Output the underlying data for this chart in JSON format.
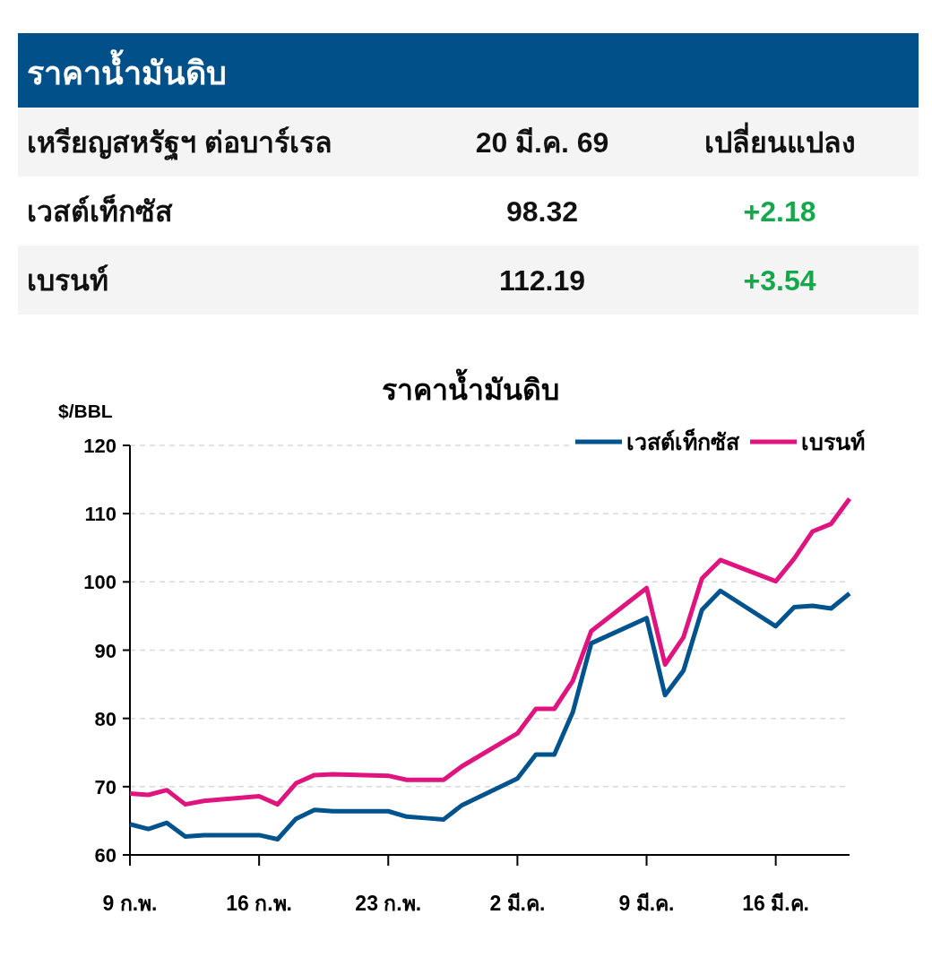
{
  "chart_data": [
    {
      "type": "other",
      "title": "ราคาน้ำมันดิบ",
      "annotations": [
        "เหรียญสหรัฐฯ ต่อบาร์เรล",
        "20 มี.ค. 69",
        "เปลี่ยนแปลง",
        "เวสต์เท็กซัส",
        "98.32",
        "+2.18",
        "เบรนท์",
        "112.19",
        "+3.54"
      ]
    },
    {
      "type": "line",
      "title": "ราคาน้ำมันดิบ",
      "ylabel": "$/BBL",
      "x": [
        "--02-09",
        "--02-10",
        "--02-11",
        "--02-12",
        "--02-13",
        "--02-16",
        "--02-17",
        "--02-18",
        "--02-19",
        "--02-20",
        "--02-23",
        "--02-24",
        "--02-25",
        "--02-26",
        "--02-27",
        "--03-02",
        "--03-03",
        "--03-04",
        "--03-05",
        "--03-06",
        "--03-09",
        "--03-10",
        "--03-11",
        "--03-12",
        "--03-13",
        "--03-16",
        "--03-17",
        "--03-18",
        "--03-19",
        "--03-20"
      ],
      "series": [
        {
          "name": "เวสต์เท็กซัส",
          "color": "#00538d",
          "values": [
            64.5,
            63.8,
            64.7,
            62.7,
            62.9,
            62.9,
            62.3,
            65.3,
            66.6,
            66.4,
            66.4,
            65.6,
            65.4,
            65.2,
            67.3,
            71.2,
            74.7,
            74.7,
            80.9,
            91.0,
            94.7,
            83.4,
            87.0,
            95.9,
            98.7,
            93.5,
            96.3,
            96.5,
            96.1,
            98.3
          ]
        },
        {
          "name": "เบรนท์",
          "color": "#e0147f",
          "values": [
            69.0,
            68.8,
            69.5,
            67.4,
            67.9,
            68.6,
            67.4,
            70.5,
            71.7,
            71.8,
            71.6,
            71.0,
            71.0,
            71.0,
            73.0,
            77.8,
            81.4,
            81.4,
            85.5,
            92.8,
            99.1,
            87.9,
            91.9,
            100.5,
            103.2,
            100.1,
            103.4,
            107.4,
            108.5,
            112.2
          ]
        }
      ],
      "xlim": [
        "--02-09",
        "--03-20"
      ],
      "xticks": [
        {
          "value": "--02-09",
          "label": "9 ก.พ."
        },
        {
          "value": "--02-16",
          "label": "16 ก.พ."
        },
        {
          "value": "--02-23",
          "label": "23 ก.พ."
        },
        {
          "value": "--03-02",
          "label": "2 มี.ค."
        },
        {
          "value": "--03-09",
          "label": "9 มี.ค."
        },
        {
          "value": "--03-16",
          "label": "16 มี.ค."
        }
      ],
      "ylim": [
        60,
        120
      ],
      "yticks": [
        60,
        70,
        80,
        90,
        100,
        110,
        120
      ],
      "grid": "y",
      "legend": "top right",
      "line_style": "solid"
    }
  ]
}
